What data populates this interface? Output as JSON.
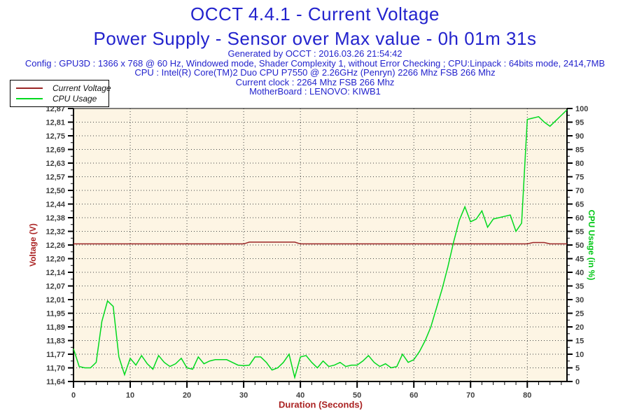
{
  "header": {
    "title": "OCCT 4.4.1 - Current Voltage",
    "subtitle": "Power Supply - Sensor over Max value - 0h 01m 31s",
    "generated": "Generated by OCCT : 2016.03.26 21:54:42",
    "config": "Config : GPU3D : 1366 x 768 @ 60 Hz, Windowed mode, Shader Complexity 1, without Error Checking ; CPU:Linpack : 64bits mode, 2414,7MB",
    "cpu": "CPU : Intel(R) Core(TM)2 Duo CPU P7550 @ 2.26GHz (Penryn) 2266 Mhz FSB 266 Mhz",
    "clock": "Current clock : 2264 Mhz FSB 266 Mhz",
    "motherboard": "MotherBoard : LENOVO: KIWB1"
  },
  "legend": {
    "items": [
      {
        "label": "Current Voltage",
        "color": "#9B2626"
      },
      {
        "label": "CPU Usage",
        "color": "#00D91E"
      }
    ]
  },
  "colors": {
    "title_blue": "#2323CD",
    "axis_red": "#AA2222",
    "axis_green": "#00C814",
    "tick_text": "#3F3F3F",
    "plot_bg": "#FDF5E4",
    "grid": "#444444"
  },
  "chart_data": {
    "type": "line",
    "title": "OCCT 4.4.1 - Current Voltage",
    "subtitle": "Power Supply - Sensor over Max value - 0h 01m 31s",
    "xlabel": "Duration (Seconds)",
    "ylabel_left": "Voltage (V)",
    "ylabel_right": "CPU Usage (in %)",
    "x_start": 0,
    "x_interval": 1,
    "x_max": 87,
    "x_major_step": 10,
    "x_minor_step": 2,
    "x_tick_labels": [
      "0",
      "10",
      "20",
      "30",
      "40",
      "50",
      "60",
      "70",
      "80"
    ],
    "y_left_min": 11.64,
    "y_left_max": 12.87,
    "y_left_tick_labels": [
      "12,87",
      "12,81",
      "12,75",
      "12,69",
      "12,63",
      "12,57",
      "12,50",
      "12,44",
      "12,38",
      "12,32",
      "12,26",
      "12,20",
      "12,14",
      "12,07",
      "12,01",
      "11,95",
      "11,89",
      "11,83",
      "11,77",
      "11,70",
      "11,64"
    ],
    "y_right_min": 0,
    "y_right_max": 100,
    "y_right_tick_labels": [
      "100",
      "95",
      "90",
      "85",
      "80",
      "75",
      "70",
      "65",
      "60",
      "55",
      "50",
      "45",
      "40",
      "35",
      "30",
      "25",
      "20",
      "15",
      "10",
      "5",
      "0"
    ],
    "grid": "dotted; horizontal at each left-axis tick, vertical every 10 s",
    "legend_position": "top-left",
    "series": [
      {
        "name": "Current Voltage",
        "axis": "left",
        "color": "#9B2626",
        "values": [
          12.26,
          12.26,
          12.26,
          12.26,
          12.26,
          12.26,
          12.26,
          12.26,
          12.26,
          12.26,
          12.26,
          12.26,
          12.26,
          12.26,
          12.26,
          12.26,
          12.26,
          12.26,
          12.26,
          12.26,
          12.26,
          12.26,
          12.26,
          12.26,
          12.26,
          12.26,
          12.26,
          12.26,
          12.26,
          12.26,
          12.26,
          12.268,
          12.268,
          12.268,
          12.268,
          12.268,
          12.268,
          12.268,
          12.268,
          12.268,
          12.26,
          12.26,
          12.26,
          12.26,
          12.26,
          12.26,
          12.26,
          12.26,
          12.26,
          12.26,
          12.26,
          12.26,
          12.26,
          12.26,
          12.26,
          12.26,
          12.26,
          12.26,
          12.26,
          12.26,
          12.26,
          12.26,
          12.26,
          12.26,
          12.26,
          12.26,
          12.26,
          12.26,
          12.26,
          12.26,
          12.26,
          12.26,
          12.26,
          12.26,
          12.26,
          12.26,
          12.26,
          12.26,
          12.26,
          12.26,
          12.26,
          12.266,
          12.266,
          12.266,
          12.26,
          12.26,
          12.26,
          12.26
        ]
      },
      {
        "name": "CPU Usage",
        "axis": "right",
        "color": "#00D91E",
        "values": [
          12,
          5.5,
          5,
          5,
          7,
          22,
          29.5,
          27.5,
          9,
          2.5,
          8.5,
          6,
          9.5,
          6.5,
          4.5,
          9.5,
          7,
          5.5,
          6.5,
          8.5,
          5,
          4.5,
          9,
          6.5,
          7.5,
          8,
          8,
          8,
          7,
          6,
          5.8,
          6,
          9,
          9,
          7,
          4.2,
          5,
          7,
          10,
          1.5,
          9,
          9.5,
          7,
          5,
          7.5,
          5.5,
          6,
          7,
          5.5,
          6,
          6,
          7.5,
          9.5,
          7,
          5.5,
          6.5,
          5,
          5.5,
          10,
          7,
          8,
          11,
          15,
          20,
          27,
          34,
          42,
          51,
          59,
          64,
          58.5,
          59.5,
          62.5,
          56.5,
          59.5,
          60,
          60.5,
          61,
          55,
          58,
          96,
          96.5,
          97,
          95,
          93.5,
          95.5,
          97.5,
          99.5
        ]
      }
    ]
  }
}
